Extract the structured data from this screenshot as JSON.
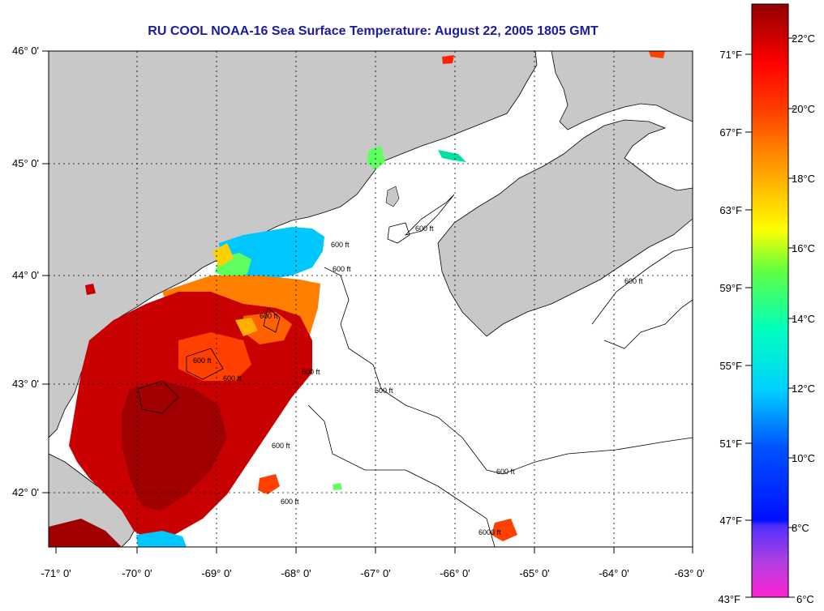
{
  "title": "RU COOL  NOAA-16  Sea Surface Temperature:  August 22, 2005 1805 GMT",
  "lon_labels": [
    "-71° 0'",
    "-70° 0'",
    "-69° 0'",
    "-68° 0'",
    "-67° 0'",
    "-66° 0'",
    "-65° 0'",
    "-64° 0'",
    "-63° 0'"
  ],
  "lat_labels": [
    "46° 0'",
    "45° 0'",
    "44° 0'",
    "43° 0'",
    "42° 0'"
  ],
  "colorbar": {
    "celsius": [
      "22°C",
      "20°C",
      "18°C",
      "16°C",
      "14°C",
      "12°C",
      "10°C",
      "8°C",
      "6°C"
    ],
    "fahrenheit": [
      "71°F",
      "67°F",
      "63°F",
      "59°F",
      "55°F",
      "51°F",
      "47°F",
      "43°F"
    ]
  },
  "contour_labels": [
    "600 ft",
    "600 ft",
    "600 ft",
    "600 ft",
    "600 ft",
    "600 ft",
    "600 ft",
    "600 ft",
    "600 ft",
    "600 ft",
    "600 ft",
    "600 ft",
    "6000 ft"
  ],
  "colors": {
    "title": "#1a1aa6",
    "land": "#c8c8c8",
    "water": "#ffffff",
    "sst_warm": "#c80000",
    "sst_hot": "#a00000",
    "sst_mid": "#ff4000",
    "sst_orange": "#ff8000",
    "sst_cool": "#00c8ff"
  }
}
